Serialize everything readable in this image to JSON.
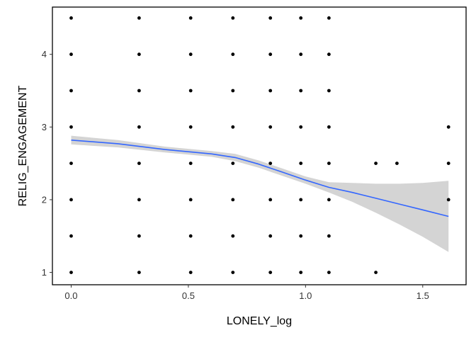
{
  "chart_data": {
    "type": "scatter",
    "xlabel": "LONELY_log",
    "ylabel": "RELIG_ENGAGEMENT",
    "xlim": [
      -0.08,
      1.685
    ],
    "ylim": [
      0.83,
      4.65
    ],
    "x_ticks": [
      0.0,
      0.5,
      1.0,
      1.5
    ],
    "x_tick_labels": [
      "0.0",
      "0.5",
      "1.0",
      "1.5"
    ],
    "y_ticks": [
      1,
      2,
      3,
      4
    ],
    "y_tick_labels": [
      "1",
      "2",
      "3",
      "4"
    ],
    "grid": false,
    "points": [
      [
        0.0,
        4.5
      ],
      [
        0.0,
        4.0
      ],
      [
        0.0,
        3.5
      ],
      [
        0.0,
        3.0
      ],
      [
        0.0,
        2.5
      ],
      [
        0.0,
        2.0
      ],
      [
        0.0,
        1.5
      ],
      [
        0.0,
        1.0
      ],
      [
        0.29,
        4.5
      ],
      [
        0.29,
        4.0
      ],
      [
        0.29,
        3.5
      ],
      [
        0.29,
        3.0
      ],
      [
        0.29,
        2.5
      ],
      [
        0.29,
        2.0
      ],
      [
        0.29,
        1.5
      ],
      [
        0.29,
        1.0
      ],
      [
        0.51,
        4.5
      ],
      [
        0.51,
        4.0
      ],
      [
        0.51,
        3.5
      ],
      [
        0.51,
        3.0
      ],
      [
        0.51,
        2.5
      ],
      [
        0.51,
        2.0
      ],
      [
        0.51,
        1.5
      ],
      [
        0.51,
        1.0
      ],
      [
        0.69,
        4.5
      ],
      [
        0.69,
        4.0
      ],
      [
        0.69,
        3.5
      ],
      [
        0.69,
        3.0
      ],
      [
        0.69,
        2.5
      ],
      [
        0.69,
        2.0
      ],
      [
        0.69,
        1.5
      ],
      [
        0.69,
        1.0
      ],
      [
        0.85,
        4.5
      ],
      [
        0.85,
        4.0
      ],
      [
        0.85,
        3.5
      ],
      [
        0.85,
        3.0
      ],
      [
        0.85,
        2.5
      ],
      [
        0.85,
        2.0
      ],
      [
        0.85,
        1.5
      ],
      [
        0.85,
        1.0
      ],
      [
        0.98,
        4.5
      ],
      [
        0.98,
        4.0
      ],
      [
        0.98,
        3.5
      ],
      [
        0.98,
        3.0
      ],
      [
        0.98,
        2.5
      ],
      [
        0.98,
        2.0
      ],
      [
        0.98,
        1.5
      ],
      [
        0.98,
        1.0
      ],
      [
        1.1,
        4.5
      ],
      [
        1.1,
        4.0
      ],
      [
        1.1,
        3.5
      ],
      [
        1.1,
        3.0
      ],
      [
        1.1,
        2.5
      ],
      [
        1.1,
        2.0
      ],
      [
        1.1,
        1.5
      ],
      [
        1.1,
        1.0
      ],
      [
        1.3,
        2.5
      ],
      [
        1.3,
        1.0
      ],
      [
        1.39,
        2.5
      ],
      [
        1.61,
        3.0
      ],
      [
        1.61,
        2.5
      ],
      [
        1.61,
        2.0
      ]
    ],
    "smooth_fit": {
      "color": "#3366ff",
      "band_color": "#d4d4d4",
      "x": [
        0.0,
        0.2,
        0.4,
        0.6,
        0.7,
        0.8,
        0.9,
        1.0,
        1.1,
        1.2,
        1.3,
        1.4,
        1.5,
        1.61
      ],
      "y": [
        2.82,
        2.77,
        2.69,
        2.63,
        2.58,
        2.49,
        2.38,
        2.27,
        2.17,
        2.1,
        2.02,
        1.94,
        1.86,
        1.77
      ],
      "lower": [
        2.76,
        2.72,
        2.65,
        2.59,
        2.53,
        2.44,
        2.33,
        2.22,
        2.1,
        1.97,
        1.82,
        1.66,
        1.49,
        1.28
      ],
      "upper": [
        2.88,
        2.82,
        2.73,
        2.67,
        2.63,
        2.54,
        2.43,
        2.32,
        2.24,
        2.23,
        2.22,
        2.22,
        2.23,
        2.26
      ]
    }
  }
}
